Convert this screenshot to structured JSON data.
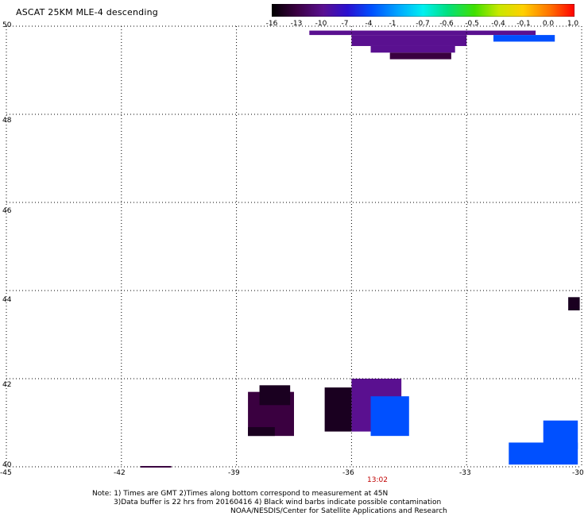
{
  "title": "ASCAT 25KM MLE-4 descending",
  "colorbar": {
    "labels": [
      "-16",
      "-13",
      "-10",
      "-7",
      "-4",
      "-1",
      "-0.7",
      "-0.6",
      "-0.5",
      "-0.4",
      "-0.1",
      "0.0",
      "1.0"
    ],
    "colors": [
      "#000000",
      "#3a0040",
      "#5a1090",
      "#2a10d0",
      "#0050ff",
      "#00a8ff",
      "#00f0f0",
      "#00e080",
      "#40e000",
      "#c8e800",
      "#ffd000",
      "#ff7000",
      "#ff0000"
    ]
  },
  "axes": {
    "x_ticks": [
      "-45",
      "-42",
      "-39",
      "-36",
      "-33",
      "-30"
    ],
    "y_ticks": [
      "50",
      "48",
      "46",
      "44",
      "42",
      "40"
    ],
    "xlim": [
      -45,
      -30
    ],
    "ylim": [
      40,
      50
    ],
    "grid": true
  },
  "time_label": "13:02",
  "notes": {
    "line1": "Note: 1) Times are GMT 2)Times along bottom correspond to measurement at 45N",
    "line2": "3)Data buffer is 22 hrs from 20160416 4) Black wind barbs indicate possible contamination",
    "line3": "NOAA/NESDIS/Center for Satellite Applications and Research"
  },
  "map_data": {
    "regions": [
      {
        "name": "north-swath",
        "color": "#5a1090",
        "cells": [
          [
            -37.1,
            49.9,
            -31.2,
            49.8
          ],
          [
            -36.0,
            49.8,
            -33.0,
            49.55
          ],
          [
            -35.5,
            49.55,
            -33.3,
            49.4
          ]
        ]
      },
      {
        "name": "north-swath-dark",
        "color": "#3a0040",
        "cells": [
          [
            -35.0,
            49.4,
            -33.4,
            49.25
          ]
        ]
      },
      {
        "name": "north-swath-blue",
        "color": "#0050ff",
        "cells": [
          [
            -32.3,
            49.8,
            -30.7,
            49.65
          ]
        ]
      },
      {
        "name": "west-patch",
        "color": "#3a0040",
        "cells": [
          [
            -38.7,
            41.7,
            -37.5,
            40.7
          ]
        ]
      },
      {
        "name": "west-patch-black",
        "color": "#1a0020",
        "cells": [
          [
            -38.4,
            41.85,
            -37.6,
            41.4
          ],
          [
            -38.7,
            40.9,
            -38.0,
            40.7
          ]
        ]
      },
      {
        "name": "mid-patch-black",
        "color": "#1a0020",
        "cells": [
          [
            -36.7,
            41.8,
            -36.0,
            40.8
          ]
        ]
      },
      {
        "name": "mid-patch-purple",
        "color": "#5a1090",
        "cells": [
          [
            -36.0,
            42.0,
            -34.7,
            40.8
          ]
        ]
      },
      {
        "name": "mid-patch-blue",
        "color": "#0050ff",
        "cells": [
          [
            -35.5,
            41.6,
            -34.5,
            40.7
          ]
        ]
      },
      {
        "name": "east-patch-blue",
        "color": "#0050ff",
        "cells": [
          [
            -31.0,
            41.05,
            -30.1,
            40.4
          ],
          [
            -31.9,
            40.55,
            -30.1,
            40.05
          ]
        ]
      },
      {
        "name": "east-patch-dark",
        "color": "#1a0020",
        "cells": [
          [
            -30.35,
            43.85,
            -30.05,
            43.55
          ]
        ]
      }
    ]
  }
}
